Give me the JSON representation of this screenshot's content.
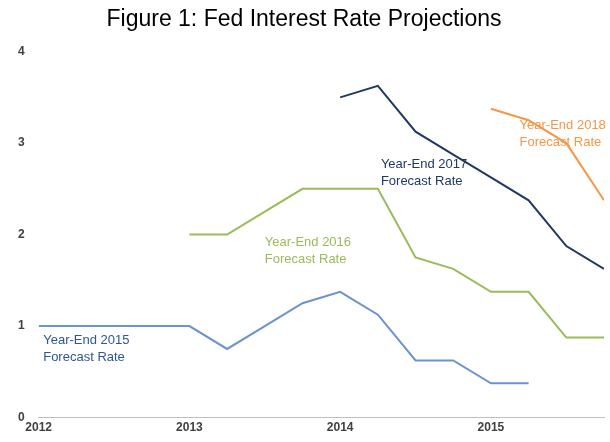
{
  "chart_data": {
    "type": "line",
    "title": "Figure 1: Fed Interest Rate Projections",
    "x": [
      2012,
      2012.25,
      2012.5,
      2012.75,
      2013,
      2013.25,
      2013.5,
      2013.75,
      2014,
      2014.25,
      2014.5,
      2014.75,
      2015,
      2015.25,
      2015.5,
      2015.75
    ],
    "series": [
      {
        "name": "Year-End 2015 Forecast Rate",
        "color": "#6b93cf",
        "values": [
          1,
          1,
          1,
          1,
          1,
          0.75,
          1,
          1.25,
          1.375,
          1.125,
          0.625,
          0.625,
          0.375,
          0.375,
          null,
          null
        ]
      },
      {
        "name": "Year-End 2016 Forecast Rate",
        "color": "#9bbb59",
        "values": [
          null,
          null,
          null,
          null,
          2,
          2,
          2.25,
          2.5,
          2.5,
          2.5,
          1.75,
          1.625,
          1.375,
          1.375,
          0.875,
          0.875
        ]
      },
      {
        "name": "Year-End 2017 Forecast Rate",
        "color": "#1f3864",
        "values": [
          null,
          null,
          null,
          null,
          null,
          null,
          null,
          null,
          3.5,
          3.625,
          3.125,
          2.875,
          2.625,
          2.375,
          1.875,
          1.625
        ]
      },
      {
        "name": "Year-End 2018 Forecast Rate",
        "color": "#f79646",
        "values": [
          null,
          null,
          null,
          null,
          null,
          null,
          null,
          null,
          null,
          null,
          null,
          null,
          3.375,
          3.25,
          3.0,
          2.375
        ]
      }
    ],
    "xlim": [
      2012,
      2015.75
    ],
    "xticks": [
      2012,
      2013,
      2014,
      2015
    ],
    "ylim": [
      0,
      4
    ],
    "yticks": [
      0,
      1,
      2,
      3,
      4
    ],
    "grid": false,
    "legend": "none"
  }
}
